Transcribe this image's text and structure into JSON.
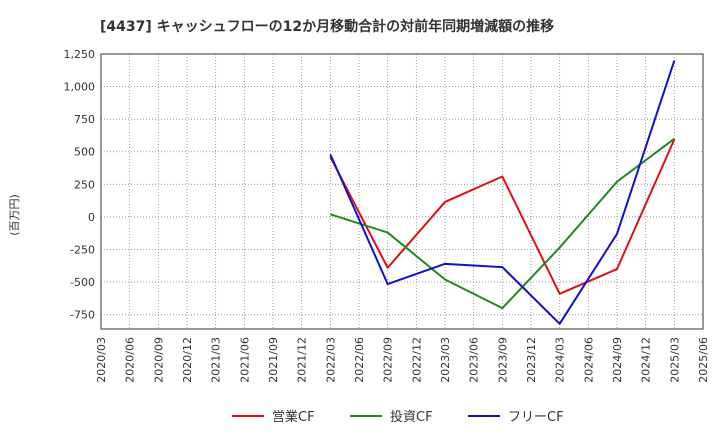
{
  "chart_data": {
    "type": "line",
    "title": "[4437]  キャッシュフローの12か月移動合計の対前年同期増減額の推移",
    "ylabel": "(百万円)",
    "xlabel": "",
    "ylim": [
      -860,
      1250
    ],
    "yticks": [
      1250,
      1000,
      750,
      500,
      250,
      0,
      -250,
      -500,
      -750
    ],
    "ytick_labels": [
      "1,250",
      "1,000",
      "750",
      "500",
      "250",
      "0",
      "-250",
      "-500",
      "-750"
    ],
    "categories": [
      "2020/03",
      "2020/06",
      "2020/09",
      "2020/12",
      "2021/03",
      "2021/06",
      "2021/09",
      "2021/12",
      "2022/03",
      "2022/06",
      "2022/09",
      "2022/12",
      "2023/03",
      "2023/06",
      "2023/09",
      "2023/12",
      "2024/03",
      "2024/06",
      "2024/09",
      "2024/12",
      "2025/03",
      "2025/06"
    ],
    "grid": true,
    "legend_position": "bottom",
    "series": [
      {
        "name": "営業CF",
        "color": "#dd1111",
        "x": [
          "2022/03",
          "2022/09",
          "2023/03",
          "2023/09",
          "2024/03",
          "2024/09",
          "2025/03"
        ],
        "values": [
          460,
          -390,
          115,
          310,
          -590,
          -400,
          595
        ]
      },
      {
        "name": "投資CF",
        "color": "#228822",
        "x": [
          "2022/03",
          "2022/09",
          "2023/03",
          "2023/09",
          "2024/03",
          "2024/09",
          "2025/03"
        ],
        "values": [
          20,
          -120,
          -480,
          -700,
          -235,
          270,
          600
        ]
      },
      {
        "name": "フリーCF",
        "color": "#1111cc",
        "x": [
          "2022/03",
          "2022/09",
          "2023/03",
          "2023/09",
          "2024/03",
          "2024/09",
          "2025/03"
        ],
        "values": [
          480,
          -515,
          -360,
          -385,
          -820,
          -130,
          1200
        ]
      }
    ]
  }
}
